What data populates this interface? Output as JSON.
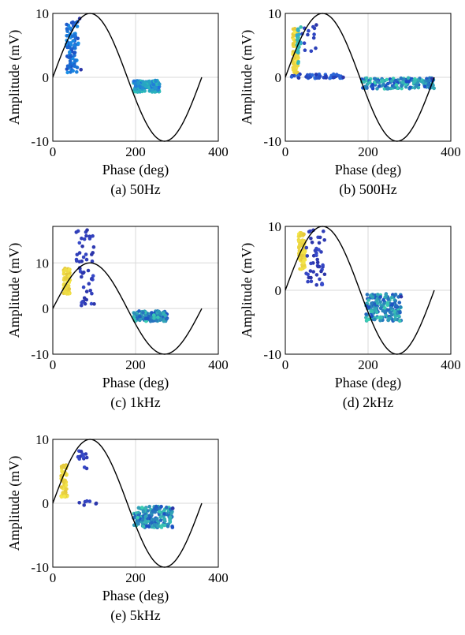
{
  "chart_data": [
    {
      "type": "scatter",
      "caption": "(a) 50Hz",
      "xlabel": "Phase (deg)",
      "ylabel": "Amplitude (mV)",
      "xlim": [
        0,
        400
      ],
      "ylim": [
        -10,
        10
      ],
      "xticks": [
        0,
        200,
        400
      ],
      "yticks": [
        -10,
        0,
        10
      ],
      "grid": true,
      "reference_curve": {
        "amplitude": 10,
        "x_range": [
          0,
          360
        ]
      },
      "clusters": [
        {
          "x": [
            33,
            62
          ],
          "y": [
            0.5,
            8.7
          ],
          "color_range": [
            "#1d4fc4",
            "#1a8fe6"
          ],
          "count": 90
        },
        {
          "x": [
            195,
            258
          ],
          "y": [
            -2.3,
            -0.5
          ],
          "color_range": [
            "#1f6fe0",
            "#2ec7b2"
          ],
          "count": 120
        }
      ],
      "outliers": [
        {
          "x": 65,
          "y": 9.2
        },
        {
          "x": 68,
          "y": 1.2
        }
      ]
    },
    {
      "type": "scatter",
      "caption": "(b) 500Hz",
      "xlabel": "Phase (deg)",
      "ylabel": "Amplitude (mV)",
      "xlim": [
        0,
        400
      ],
      "ylim": [
        -10,
        10
      ],
      "xticks": [
        0,
        200,
        400
      ],
      "yticks": [
        -10,
        0,
        10
      ],
      "grid": true,
      "reference_curve": {
        "amplitude": 10,
        "x_range": [
          0,
          360
        ]
      },
      "clusters": [
        {
          "x": [
            18,
            32
          ],
          "y": [
            0.5,
            7.8
          ],
          "color_range": [
            "#e6c93a",
            "#f5e84a"
          ],
          "count": 70
        },
        {
          "x": [
            28,
            38
          ],
          "y": [
            2.0,
            8.0
          ],
          "color_range": [
            "#2aa7d8",
            "#3cc1a8"
          ],
          "count": 30
        },
        {
          "x": [
            40,
            75
          ],
          "y": [
            4.0,
            8.0
          ],
          "color_range": [
            "#2b3fb4",
            "#3149c9"
          ],
          "count": 12
        },
        {
          "x": [
            10,
            140
          ],
          "y": [
            -0.2,
            0.5
          ],
          "color_range": [
            "#2337b0",
            "#2c6fe0"
          ],
          "count": 45
        },
        {
          "x": [
            185,
            360
          ],
          "y": [
            -1.8,
            -0.1
          ],
          "color_range": [
            "#1b46c8",
            "#3cd0b0"
          ],
          "count": 170
        }
      ],
      "outliers": [
        {
          "x": 75,
          "y": 8.2
        },
        {
          "x": 140,
          "y": 0.0
        },
        {
          "x": 355,
          "y": -0.2
        }
      ]
    },
    {
      "type": "scatter",
      "caption": "(c) 1kHz",
      "xlabel": "Phase (deg)",
      "ylabel": "Amplitude (mV)",
      "xlim": [
        0,
        400
      ],
      "ylim": [
        -10,
        18
      ],
      "xticks": [
        0,
        200,
        400
      ],
      "yticks": [
        -10,
        0,
        10
      ],
      "grid": true,
      "reference_curve": {
        "amplitude": 10,
        "x_range": [
          0,
          360
        ]
      },
      "clusters": [
        {
          "x": [
            26,
            42
          ],
          "y": [
            3.0,
            9.0
          ],
          "color_range": [
            "#e3c63b",
            "#f5e84a"
          ],
          "count": 60
        },
        {
          "x": [
            55,
            100
          ],
          "y": [
            0.5,
            17.0
          ],
          "color_range": [
            "#2a33a8",
            "#3a4fd0"
          ],
          "count": 50
        },
        {
          "x": [
            195,
            278
          ],
          "y": [
            -2.8,
            -0.5
          ],
          "color_range": [
            "#1d4fc4",
            "#3cd0b0"
          ],
          "count": 140
        }
      ],
      "outliers": [
        {
          "x": 83,
          "y": 17.2
        },
        {
          "x": 100,
          "y": 1.0
        }
      ]
    },
    {
      "type": "scatter",
      "caption": "(d) 2kHz",
      "xlabel": "Phase (deg)",
      "ylabel": "Amplitude (mV)",
      "xlim": [
        0,
        400
      ],
      "ylim": [
        -10,
        10
      ],
      "xticks": [
        0,
        200,
        400
      ],
      "yticks": [
        -10,
        0,
        10
      ],
      "grid": true,
      "reference_curve": {
        "amplitude": 10,
        "x_range": [
          0,
          360
        ]
      },
      "clusters": [
        {
          "x": [
            32,
            48
          ],
          "y": [
            3.0,
            9.0
          ],
          "color_range": [
            "#e3c63b",
            "#f5e84a"
          ],
          "count": 70
        },
        {
          "x": [
            50,
            95
          ],
          "y": [
            0.5,
            9.5
          ],
          "color_range": [
            "#2a33a8",
            "#3a4fd0"
          ],
          "count": 45
        },
        {
          "x": [
            195,
            280
          ],
          "y": [
            -4.8,
            -0.5
          ],
          "color_range": [
            "#1d4fc4",
            "#3cd0b0"
          ],
          "count": 170
        }
      ],
      "outliers": [
        {
          "x": 95,
          "y": 2.5
        },
        {
          "x": 280,
          "y": -1.0
        }
      ]
    },
    {
      "type": "scatter",
      "caption": "(e) 5kHz",
      "xlabel": "Phase (deg)",
      "ylabel": "Amplitude (mV)",
      "xlim": [
        0,
        400
      ],
      "ylim": [
        -10,
        10
      ],
      "xticks": [
        0,
        200,
        400
      ],
      "yticks": [
        -10,
        0,
        10
      ],
      "grid": true,
      "reference_curve": {
        "amplitude": 10,
        "x_range": [
          0,
          360
        ]
      },
      "clusters": [
        {
          "x": [
            20,
            35
          ],
          "y": [
            1.0,
            6.0
          ],
          "color_range": [
            "#e3c63b",
            "#f5e84a"
          ],
          "count": 60
        },
        {
          "x": [
            60,
            85
          ],
          "y": [
            5.0,
            9.0
          ],
          "color_range": [
            "#2a33a8",
            "#3a4fd0"
          ],
          "count": 12
        },
        {
          "x": [
            60,
            105
          ],
          "y": [
            -0.3,
            0.5
          ],
          "color_range": [
            "#2a33a8",
            "#3a4fd0"
          ],
          "count": 6
        },
        {
          "x": [
            195,
            290
          ],
          "y": [
            -3.8,
            -0.5
          ],
          "color_range": [
            "#1d4fc4",
            "#3cd0b0"
          ],
          "count": 170
        }
      ],
      "outliers": [
        {
          "x": 105,
          "y": 0.0
        },
        {
          "x": 290,
          "y": -0.8
        }
      ]
    }
  ]
}
